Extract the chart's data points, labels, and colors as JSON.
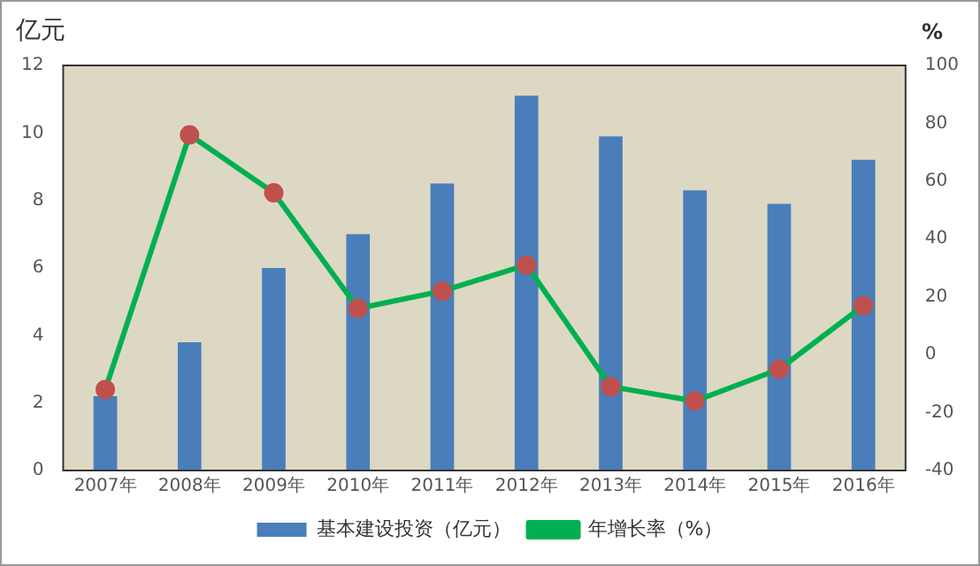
{
  "chart_data": {
    "type": "bar",
    "ylabel": "亿元",
    "y2label": "%",
    "categories": [
      "2007年",
      "2008年",
      "2009年",
      "2010年",
      "2011年",
      "2012年",
      "2013年",
      "2014年",
      "2015年",
      "2016年"
    ],
    "series": [
      {
        "name": "基本建设投资（亿元）",
        "color": "#4a7ebb",
        "values": [
          2.2,
          3.8,
          6.0,
          7.0,
          8.5,
          11.1,
          9.9,
          8.3,
          7.9,
          9.2
        ]
      },
      {
        "name": "年增长率（%）",
        "type": "line",
        "axis": "y2",
        "color": "#00b050",
        "values": [
          -12,
          76,
          56,
          16,
          22,
          31,
          -11,
          -16,
          -5,
          17
        ]
      }
    ],
    "ylim": [
      0,
      12
    ],
    "yticks": [
      0,
      2,
      4,
      6,
      8,
      10,
      12
    ],
    "y2lim": [
      -40,
      100
    ],
    "y2ticks": [
      -40,
      -20,
      0,
      20,
      40,
      60,
      80,
      100
    ],
    "grid": false,
    "legend": "bottom",
    "marker": "circle",
    "line_style": "solid"
  }
}
